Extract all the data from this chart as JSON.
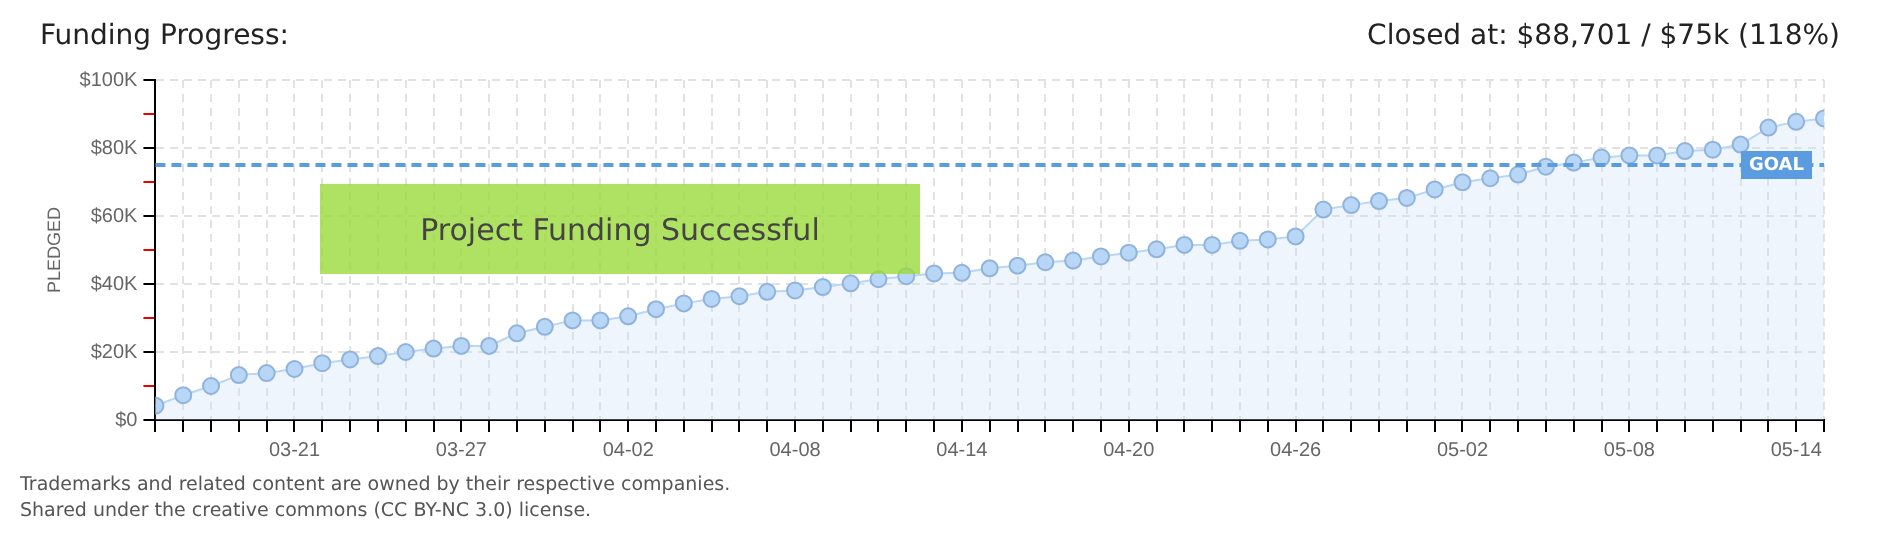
{
  "chart_data": {
    "type": "area",
    "title": "Funding Progress:",
    "subtitle": "Closed at:  $88,701 /  $75k (118%)",
    "ylabel": "PLEDGED",
    "x": [
      "--03-16",
      "--03-17",
      "--03-18",
      "--03-19",
      "--03-20",
      "--03-21",
      "--03-22",
      "--03-23",
      "--03-24",
      "--03-25",
      "--03-26",
      "--03-27",
      "--03-28",
      "--03-29",
      "--03-30",
      "--03-31",
      "--04-01",
      "--04-02",
      "--04-03",
      "--04-04",
      "--04-05",
      "--04-06",
      "--04-07",
      "--04-08",
      "--04-09",
      "--04-10",
      "--04-11",
      "--04-12",
      "--04-13",
      "--04-14",
      "--04-15",
      "--04-16",
      "--04-17",
      "--04-18",
      "--04-19",
      "--04-20",
      "--04-21",
      "--04-22",
      "--04-23",
      "--04-24",
      "--04-25",
      "--04-26",
      "--04-27",
      "--04-28",
      "--04-29",
      "--04-30",
      "--05-01",
      "--05-02",
      "--05-03",
      "--05-04",
      "--05-05",
      "--05-06",
      "--05-07",
      "--05-08",
      "--05-09",
      "--05-10",
      "--05-11",
      "--05-12",
      "--05-13",
      "--05-14",
      "--05-15"
    ],
    "series": [
      {
        "color": "#b8d6f5",
        "values": [
          4.2,
          7.3,
          10,
          13.2,
          13.8,
          15,
          16.7,
          17.8,
          18.8,
          20,
          21,
          21.8,
          21.8,
          25.5,
          27.4,
          29.3,
          29.3,
          30.5,
          32.6,
          34.3,
          35.6,
          36.4,
          37.7,
          38.1,
          39.1,
          40.2,
          41.4,
          42.3,
          43.1,
          43.3,
          44.6,
          45.4,
          46.4,
          46.9,
          48.1,
          49.2,
          50.2,
          51.5,
          51.5,
          52.7,
          53.1,
          54,
          61.9,
          63.2,
          64.4,
          65.3,
          67.8,
          69.9,
          71.1,
          72.2,
          74.5,
          75.7,
          77.2,
          77.8,
          77.8,
          79.1,
          79.5,
          81,
          86,
          87.7,
          88.7
        ]
      }
    ],
    "xlim": [
      "--03-16",
      "--05-15"
    ],
    "xticks": [
      {
        "value": "--03-16",
        "label": null
      },
      {
        "value": "--03-17",
        "label": null
      },
      {
        "value": "--03-18",
        "label": null
      },
      {
        "value": "--03-19",
        "label": null
      },
      {
        "value": "--03-20",
        "label": null
      },
      {
        "value": "--03-21",
        "label": "03-21"
      },
      {
        "value": "--03-22",
        "label": null
      },
      {
        "value": "--03-23",
        "label": null
      },
      {
        "value": "--03-24",
        "label": null
      },
      {
        "value": "--03-25",
        "label": null
      },
      {
        "value": "--03-26",
        "label": null
      },
      {
        "value": "--03-27",
        "label": "03-27"
      },
      {
        "value": "--03-28",
        "label": null
      },
      {
        "value": "--03-29",
        "label": null
      },
      {
        "value": "--03-30",
        "label": null
      },
      {
        "value": "--03-31",
        "label": null
      },
      {
        "value": "--04-01",
        "label": null
      },
      {
        "value": "--04-02",
        "label": "04-02"
      },
      {
        "value": "--04-03",
        "label": null
      },
      {
        "value": "--04-04",
        "label": null
      },
      {
        "value": "--04-05",
        "label": null
      },
      {
        "value": "--04-06",
        "label": null
      },
      {
        "value": "--04-07",
        "label": null
      },
      {
        "value": "--04-08",
        "label": "04-08"
      },
      {
        "value": "--04-09",
        "label": null
      },
      {
        "value": "--04-10",
        "label": null
      },
      {
        "value": "--04-11",
        "label": null
      },
      {
        "value": "--04-12",
        "label": null
      },
      {
        "value": "--04-13",
        "label": null
      },
      {
        "value": "--04-14",
        "label": "04-14"
      },
      {
        "value": "--04-15",
        "label": null
      },
      {
        "value": "--04-16",
        "label": null
      },
      {
        "value": "--04-17",
        "label": null
      },
      {
        "value": "--04-18",
        "label": null
      },
      {
        "value": "--04-19",
        "label": null
      },
      {
        "value": "--04-20",
        "label": "04-20"
      },
      {
        "value": "--04-21",
        "label": null
      },
      {
        "value": "--04-22",
        "label": null
      },
      {
        "value": "--04-23",
        "label": null
      },
      {
        "value": "--04-24",
        "label": null
      },
      {
        "value": "--04-25",
        "label": null
      },
      {
        "value": "--04-26",
        "label": "04-26"
      },
      {
        "value": "--04-27",
        "label": null
      },
      {
        "value": "--04-28",
        "label": null
      },
      {
        "value": "--04-29",
        "label": null
      },
      {
        "value": "--04-30",
        "label": null
      },
      {
        "value": "--05-01",
        "label": null
      },
      {
        "value": "--05-02",
        "label": "05-02"
      },
      {
        "value": "--05-03",
        "label": null
      },
      {
        "value": "--05-04",
        "label": null
      },
      {
        "value": "--05-05",
        "label": null
      },
      {
        "value": "--05-06",
        "label": null
      },
      {
        "value": "--05-07",
        "label": null
      },
      {
        "value": "--05-08",
        "label": "05-08"
      },
      {
        "value": "--05-09",
        "label": null
      },
      {
        "value": "--05-10",
        "label": null
      },
      {
        "value": "--05-11",
        "label": null
      },
      {
        "value": "--05-12",
        "label": null
      },
      {
        "value": "--05-13",
        "label": null
      },
      {
        "value": "--05-14",
        "label": "05-14"
      },
      {
        "value": "--05-15",
        "label": null
      }
    ],
    "ylim": [
      0,
      100
    ],
    "yticks": [
      {
        "value": 0,
        "label": "$0"
      },
      {
        "value": 10,
        "label": null
      },
      {
        "value": 20,
        "label": "$20K"
      },
      {
        "value": 30,
        "label": null
      },
      {
        "value": 40,
        "label": "$40K"
      },
      {
        "value": 50,
        "label": null
      },
      {
        "value": 60,
        "label": "$60K"
      },
      {
        "value": 70,
        "label": null
      },
      {
        "value": 80,
        "label": "$80K"
      },
      {
        "value": 90,
        "label": null
      },
      {
        "value": 100,
        "label": "$100K"
      }
    ],
    "ref_lines": [
      {
        "axis": "y",
        "value": 75,
        "label": "GOAL",
        "color": "#5b9be0",
        "line_style": "dashed"
      }
    ],
    "annotations": [
      "Project Funding Successful",
      "Trademarks and related content are owned by their respective companies.",
      "Shared under the creative commons (CC BY-NC 3.0) license."
    ],
    "grid": true,
    "marker": "circle",
    "legend": false
  }
}
